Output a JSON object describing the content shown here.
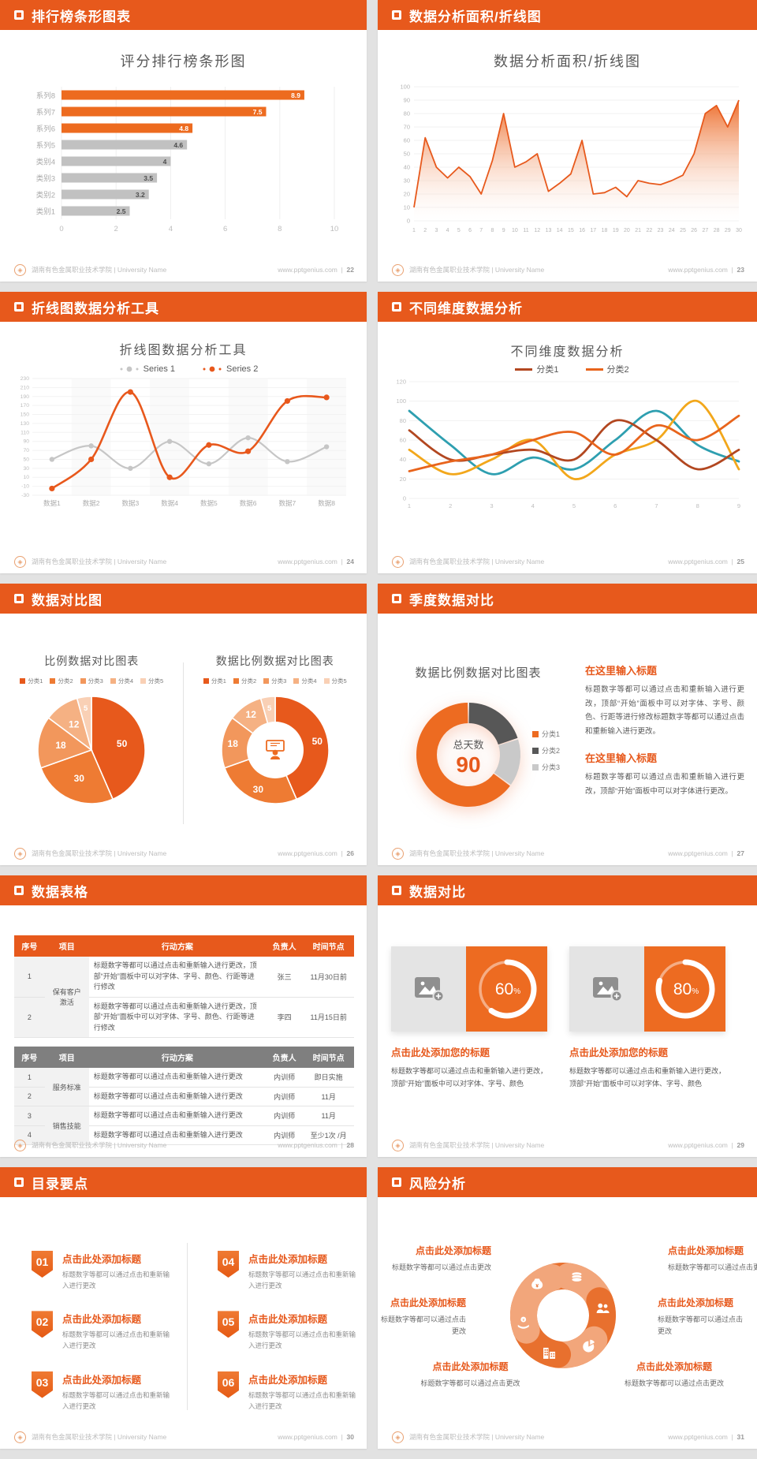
{
  "page_bg": "#e2e2e2",
  "accent": "#E7591C",
  "footer": {
    "school": "湖南有色金属职业技术学院 | University Name",
    "site": "www.pptgenius.com",
    "logo": "diamond-logo-icon"
  },
  "slides": [
    {
      "header": "排行榜条形图表",
      "page": "22"
    },
    {
      "header": "数据分析面积/折线图",
      "page": "23"
    },
    {
      "header": "折线图数据分析工具",
      "page": "24"
    },
    {
      "header": "不同维度数据分析",
      "page": "25"
    },
    {
      "header": "数据对比图",
      "page": "26"
    },
    {
      "header": "季度数据对比",
      "page": "27",
      "blocks": [
        {
          "title": "在这里输入标题",
          "body": "标题数字等都可以通过点击和重新输入进行更改，顶部“开始”面板中可以对字体、字号、颜色、行距等进行修改标题数字等都可以通过点击和重新输入进行更改。"
        },
        {
          "title": "在这里输入标题",
          "body": "标题数字等都可以通过点击和重新输入进行更改，顶部“开始”面板中可以对字体进行更改。"
        }
      ]
    },
    {
      "header": "数据表格",
      "page": "28",
      "tables": [
        {
          "header_bg": "#E7591C",
          "headers": [
            "序号",
            "项目",
            "行动方案",
            "负责人",
            "时间节点"
          ],
          "rows": [
            {
              "n": "1",
              "project": "保有客户激活",
              "span": 2,
              "plan": "标题数字等都可以通过点击和重新输入进行更改，顶部“开始”面板中可以对字体、字号、颜色、行距等进行修改",
              "owner": "张三",
              "time": "11月30日前"
            },
            {
              "n": "2",
              "plan": "标题数字等都可以通过点击和重新输入进行更改，顶部“开始”面板中可以对字体、字号、颜色、行距等进行修改",
              "owner": "李四",
              "time": "11月15日前"
            }
          ]
        },
        {
          "header_bg": "#7F7F7F",
          "headers": [
            "序号",
            "项目",
            "行动方案",
            "负责人",
            "时间节点"
          ],
          "rows": [
            {
              "n": "1",
              "project": "服务标准",
              "span": 2,
              "plan": "标题数字等都可以通过点击和重新输入进行更改",
              "owner": "内训师",
              "time": "即日实施"
            },
            {
              "n": "2",
              "plan": "标题数字等都可以通过点击和重新输入进行更改",
              "owner": "内训师",
              "time": "11月"
            },
            {
              "n": "3",
              "project": "销售技能",
              "span": 2,
              "plan": "标题数字等都可以通过点击和重新输入进行更改",
              "owner": "内训师",
              "time": "11月"
            },
            {
              "n": "4",
              "plan": "标题数字等都可以通过点击和重新输入进行更改",
              "owner": "内训师",
              "time": "至少1次 /月"
            }
          ]
        }
      ]
    },
    {
      "header": "数据对比",
      "page": "29",
      "cards": [
        {
          "title": "点击此处添加您的标题",
          "body": "标题数字等都可以通过点击和重新输入进行更改，顶部“开始”面板中可以对字体、字号、颜色"
        },
        {
          "title": "点击此处添加您的标题",
          "body": "标题数字等都可以通过点击和重新输入进行更改，顶部“开始”面板中可以对字体、字号、颜色"
        }
      ]
    },
    {
      "header": "目录要点",
      "page": "30",
      "items": [
        {
          "num": "01",
          "title": "点击此处添加标题",
          "body": "标题数字等都可以通过点击和重新输入进行更改"
        },
        {
          "num": "02",
          "title": "点击此处添加标题",
          "body": "标题数字等都可以通过点击和重新输入进行更改"
        },
        {
          "num": "03",
          "title": "点击此处添加标题",
          "body": "标题数字等都可以通过点击和重新输入进行更改"
        },
        {
          "num": "04",
          "title": "点击此处添加标题",
          "body": "标题数字等都可以通过点击和重新输入进行更改"
        },
        {
          "num": "05",
          "title": "点击此处添加标题",
          "body": "标题数字等都可以通过点击和重新输入进行更改"
        },
        {
          "num": "06",
          "title": "点击此处添加标题",
          "body": "标题数字等都可以通过点击和重新输入进行更改"
        }
      ]
    },
    {
      "header": "风险分析",
      "page": "31",
      "labels": [
        {
          "pos": "tl",
          "title": "点击此处添加标题",
          "body": "标题数字等都可以通过点击更改"
        },
        {
          "pos": "tr",
          "title": "点击此处添加标题",
          "body": "标题数字等都可以通过点击更改"
        },
        {
          "pos": "ml",
          "title": "点击此处添加标题",
          "body": "标题数字等都可以通过点击更改"
        },
        {
          "pos": "mr",
          "title": "点击此处添加标题",
          "body": "标题数字等都可以通过点击更改"
        },
        {
          "pos": "bl",
          "title": "点击此处添加标题",
          "body": "标题数字等都可以通过点击更改"
        },
        {
          "pos": "br",
          "title": "点击此处添加标题",
          "body": "标题数字等都可以通过点击更改"
        }
      ]
    }
  ],
  "chart_data": [
    {
      "type": "barh",
      "title": "评分排行榜条形图",
      "categories": [
        "系列8",
        "系列7",
        "系列6",
        "系列5",
        "类别4",
        "类别3",
        "类别2",
        "类别1"
      ],
      "values": [
        8.9,
        7.5,
        4.8,
        4.6,
        4,
        3.5,
        3.2,
        2.5
      ],
      "bar_colors": [
        "#ED6B1F",
        "#ED6B1F",
        "#ED6B1F",
        "#C1C1C1",
        "#C1C1C1",
        "#C1C1C1",
        "#C1C1C1",
        "#C1C1C1"
      ],
      "xticks": [
        0,
        2,
        4,
        6,
        8,
        10
      ],
      "xlim": [
        0,
        10
      ],
      "grid": true
    },
    {
      "type": "area",
      "title": "数据分析面积/折线图",
      "x": [
        1,
        2,
        3,
        4,
        5,
        6,
        7,
        8,
        9,
        10,
        11,
        12,
        13,
        14,
        15,
        16,
        17,
        18,
        19,
        20,
        21,
        22,
        23,
        24,
        25,
        26,
        27,
        28,
        29,
        30
      ],
      "values": [
        10,
        62,
        40,
        32,
        40,
        33,
        20,
        45,
        80,
        40,
        44,
        50,
        22,
        28,
        35,
        60,
        20,
        21,
        25,
        18,
        30,
        28,
        27,
        30,
        34,
        50,
        80,
        86,
        70,
        90
      ],
      "ylim": [
        0,
        100
      ],
      "ytick_step": 10,
      "line_color": "#E7591C",
      "fill": "orange-gradient"
    },
    {
      "type": "line",
      "title": "折线图数据分析工具",
      "categories": [
        "数据1",
        "数据2",
        "数据3",
        "数据4",
        "数据5",
        "数据6",
        "数据7",
        "数据8"
      ],
      "series": [
        {
          "name": "Series 1",
          "color": "#C6C6C6",
          "values": [
            50,
            80,
            30,
            90,
            40,
            98,
            45,
            78
          ]
        },
        {
          "name": "Series 2",
          "color": "#E8581C",
          "values": [
            -15,
            50,
            200,
            10,
            82,
            68,
            180,
            188
          ]
        }
      ],
      "ylim": [
        -30,
        230
      ],
      "ytick_step": 20,
      "legend_position": "top"
    },
    {
      "type": "multiline",
      "title": "不同维度数据分析",
      "x": [
        1,
        2,
        3,
        4,
        5,
        6,
        7,
        8,
        9
      ],
      "legend": [
        {
          "label": "分类1",
          "color": "#B24720"
        },
        {
          "label": "分类2",
          "color": "#E8641C"
        }
      ],
      "series": [
        {
          "color": "#2E9FB0",
          "values": [
            90,
            55,
            25,
            42,
            30,
            60,
            90,
            55,
            38
          ]
        },
        {
          "color": "#F2A71B",
          "values": [
            50,
            25,
            40,
            60,
            20,
            45,
            60,
            100,
            30
          ]
        },
        {
          "color": "#B24720",
          "values": [
            70,
            40,
            45,
            50,
            40,
            80,
            60,
            30,
            50
          ]
        },
        {
          "color": "#E8641C",
          "values": [
            28,
            38,
            45,
            60,
            68,
            45,
            75,
            60,
            85
          ]
        }
      ],
      "ylim": [
        0,
        120
      ],
      "ytick_step": 20
    },
    {
      "type": "pie",
      "title": "比例数据对比图表",
      "labels": [
        "分类1",
        "分类2",
        "分类3",
        "分类4",
        "分类5"
      ],
      "values": [
        50,
        30,
        18,
        12,
        5
      ],
      "colors": [
        "#E7591C",
        "#EE7B33",
        "#F2975C",
        "#F5B183",
        "#F9D0B5"
      ]
    },
    {
      "type": "donut-pie",
      "title": "数据比例数据对比图表",
      "labels": [
        "分类1",
        "分类2",
        "分类3",
        "分类4",
        "分类5"
      ],
      "values": [
        50,
        30,
        18,
        12,
        5
      ],
      "colors": [
        "#E7591C",
        "#EE7B33",
        "#F2975C",
        "#F5B183",
        "#F9D0B5"
      ],
      "center_icon": "presenter-icon"
    },
    {
      "type": "donut",
      "title": "数据比例数据对比图表",
      "center_label": "总天数",
      "center_value": "90",
      "legend": [
        "分类1",
        "分类2",
        "分类3"
      ],
      "values": [
        65,
        20,
        15
      ],
      "colors": [
        "#ED6B21",
        "#575757",
        "#C9C9C9"
      ],
      "draw_order": [
        1,
        2,
        0
      ]
    },
    {
      "type": "ring",
      "value": 60,
      "unit": "%"
    },
    {
      "type": "ring",
      "value": 80,
      "unit": "%"
    },
    {
      "type": "pinwheel",
      "icons": [
        "money-bag-icon",
        "coins-icon",
        "users-icon",
        "pie-chart-icon",
        "building-icon",
        "hand-coin-icon"
      ],
      "petal_colors": [
        "#E8702E",
        "#F2A67B"
      ]
    }
  ]
}
